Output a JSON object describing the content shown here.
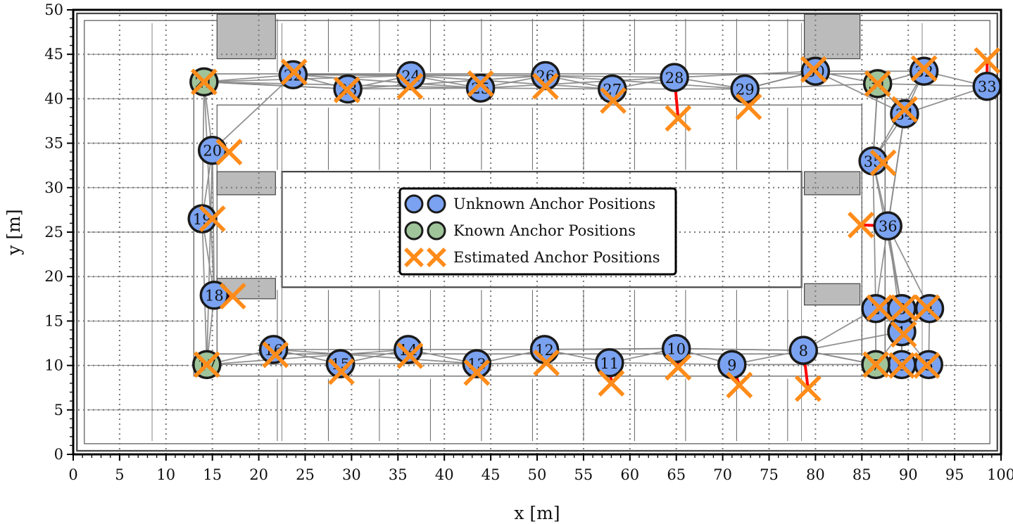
{
  "chart_data": {
    "type": "scatter",
    "xlabel": "x [m]",
    "ylabel": "y [m]",
    "xlim": [
      0,
      100
    ],
    "ylim": [
      0,
      50
    ],
    "xticks": [
      0,
      5,
      10,
      15,
      20,
      25,
      30,
      35,
      40,
      45,
      50,
      55,
      60,
      65,
      70,
      75,
      80,
      85,
      90,
      95,
      100
    ],
    "yticks": [
      0,
      5,
      10,
      15,
      20,
      25,
      30,
      35,
      40,
      45,
      50
    ],
    "grid": true,
    "background": "building floor plan",
    "legend": {
      "placement": "center",
      "entries": [
        {
          "label": "Unknown Anchor Positions",
          "marker": "circle",
          "color": "#7aa2f0"
        },
        {
          "label": "Known Anchor Positions",
          "marker": "circle",
          "color": "#9fc49a"
        },
        {
          "label": "Estimated Anchor Positions",
          "marker": "x",
          "color": "#ff8c1a"
        }
      ]
    },
    "colors": {
      "unknown": "#7aa2f0",
      "known": "#9fc49a",
      "estimate": "#ff8c1a",
      "error_line": "#ff0000",
      "links": "#888888"
    },
    "anchors": [
      {
        "id": "1",
        "x": 89.3,
        "y": 13.8,
        "ex": 89.5,
        "ey": 13.5,
        "known": false
      },
      {
        "id": "2",
        "x": 86.5,
        "y": 16.4,
        "ex": 86.9,
        "ey": 16.5,
        "known": false
      },
      {
        "id": "3",
        "x": 89.3,
        "y": 16.4,
        "ex": 89.5,
        "ey": 16.5,
        "known": false
      },
      {
        "id": "4",
        "x": 92.3,
        "y": 16.4,
        "ex": 92.0,
        "ey": 16.5,
        "known": false
      },
      {
        "id": "5",
        "x": 92.2,
        "y": 10.1,
        "ex": 92.0,
        "ey": 10.0,
        "known": false
      },
      {
        "id": "6",
        "x": 89.3,
        "y": 10.1,
        "ex": 89.3,
        "ey": 10.0,
        "known": false
      },
      {
        "id": "7",
        "x": 86.5,
        "y": 10.1,
        "ex": 86.5,
        "ey": 10.1,
        "known": true
      },
      {
        "id": "8",
        "x": 78.7,
        "y": 11.7,
        "ex": 79.2,
        "ey": 7.4,
        "known": false
      },
      {
        "id": "9",
        "x": 71.0,
        "y": 10.1,
        "ex": 71.8,
        "ey": 7.8,
        "known": false
      },
      {
        "id": "10",
        "x": 65.0,
        "y": 11.9,
        "ex": 65.2,
        "ey": 9.8,
        "known": false
      },
      {
        "id": "11",
        "x": 57.8,
        "y": 10.3,
        "ex": 58.0,
        "ey": 8.0,
        "known": false
      },
      {
        "id": "12",
        "x": 50.8,
        "y": 11.8,
        "ex": 51.0,
        "ey": 10.3,
        "known": false
      },
      {
        "id": "13",
        "x": 43.5,
        "y": 10.2,
        "ex": 43.5,
        "ey": 9.2,
        "known": false
      },
      {
        "id": "14",
        "x": 36.1,
        "y": 11.8,
        "ex": 36.3,
        "ey": 11.1,
        "known": false
      },
      {
        "id": "15",
        "x": 28.8,
        "y": 10.2,
        "ex": 28.9,
        "ey": 9.3,
        "known": false
      },
      {
        "id": "16",
        "x": 21.6,
        "y": 11.8,
        "ex": 21.8,
        "ey": 11.2,
        "known": false
      },
      {
        "id": "17",
        "x": 14.4,
        "y": 10.1,
        "ex": 14.4,
        "ey": 10.1,
        "known": true
      },
      {
        "id": "18",
        "x": 15.2,
        "y": 17.9,
        "ex": 17.2,
        "ey": 17.8,
        "known": false
      },
      {
        "id": "19",
        "x": 13.9,
        "y": 26.5,
        "ex": 15.0,
        "ey": 26.5,
        "known": false
      },
      {
        "id": "20",
        "x": 15.0,
        "y": 34.2,
        "ex": 16.8,
        "ey": 34.0,
        "known": false
      },
      {
        "id": "21",
        "x": 14.1,
        "y": 41.9,
        "ex": 14.1,
        "ey": 41.9,
        "known": true
      },
      {
        "id": "22",
        "x": 23.7,
        "y": 42.7,
        "ex": 23.8,
        "ey": 43.0,
        "known": false
      },
      {
        "id": "23",
        "x": 29.6,
        "y": 41.1,
        "ex": 29.5,
        "ey": 41.0,
        "known": false
      },
      {
        "id": "24",
        "x": 36.4,
        "y": 42.6,
        "ex": 36.3,
        "ey": 41.4,
        "known": false
      },
      {
        "id": "25",
        "x": 43.9,
        "y": 41.2,
        "ex": 43.9,
        "ey": 41.7,
        "known": false
      },
      {
        "id": "26",
        "x": 50.9,
        "y": 42.6,
        "ex": 50.9,
        "ey": 41.4,
        "known": false
      },
      {
        "id": "27",
        "x": 58.1,
        "y": 41.1,
        "ex": 58.2,
        "ey": 39.8,
        "known": false
      },
      {
        "id": "28",
        "x": 64.8,
        "y": 42.4,
        "ex": 65.2,
        "ey": 37.8,
        "known": false
      },
      {
        "id": "29",
        "x": 72.4,
        "y": 41.1,
        "ex": 72.8,
        "ey": 39.1,
        "known": false
      },
      {
        "id": "30",
        "x": 80.0,
        "y": 43.1,
        "ex": 79.8,
        "ey": 43.3,
        "known": false
      },
      {
        "id": "31",
        "x": 86.7,
        "y": 41.7,
        "ex": 86.7,
        "ey": 41.7,
        "known": true
      },
      {
        "id": "32",
        "x": 91.7,
        "y": 43.1,
        "ex": 91.7,
        "ey": 43.4,
        "known": false
      },
      {
        "id": "33",
        "x": 98.5,
        "y": 41.4,
        "ex": 98.5,
        "ey": 44.3,
        "known": false
      },
      {
        "id": "34",
        "x": 89.6,
        "y": 38.3,
        "ex": 89.6,
        "ey": 38.8,
        "known": false
      },
      {
        "id": "35",
        "x": 86.2,
        "y": 33.0,
        "ex": 87.3,
        "ey": 32.8,
        "known": false
      },
      {
        "id": "36",
        "x": 87.8,
        "y": 25.7,
        "ex": 84.9,
        "ey": 25.8,
        "known": false
      }
    ],
    "links": [
      [
        21,
        22
      ],
      [
        21,
        23
      ],
      [
        21,
        24
      ],
      [
        21,
        25
      ],
      [
        22,
        23
      ],
      [
        22,
        24
      ],
      [
        22,
        25
      ],
      [
        22,
        26
      ],
      [
        23,
        24
      ],
      [
        23,
        25
      ],
      [
        23,
        26
      ],
      [
        24,
        25
      ],
      [
        24,
        26
      ],
      [
        24,
        27
      ],
      [
        25,
        26
      ],
      [
        25,
        27
      ],
      [
        25,
        28
      ],
      [
        26,
        27
      ],
      [
        26,
        28
      ],
      [
        26,
        29
      ],
      [
        27,
        28
      ],
      [
        27,
        29
      ],
      [
        28,
        29
      ],
      [
        28,
        30
      ],
      [
        29,
        30
      ],
      [
        29,
        31
      ],
      [
        30,
        31
      ],
      [
        30,
        32
      ],
      [
        30,
        34
      ],
      [
        31,
        32
      ],
      [
        31,
        33
      ],
      [
        31,
        34
      ],
      [
        31,
        35
      ],
      [
        32,
        33
      ],
      [
        32,
        34
      ],
      [
        32,
        35
      ],
      [
        33,
        34
      ],
      [
        34,
        35
      ],
      [
        34,
        36
      ],
      [
        35,
        36
      ],
      [
        35,
        2
      ],
      [
        35,
        3
      ],
      [
        36,
        2
      ],
      [
        36,
        3
      ],
      [
        36,
        4
      ],
      [
        36,
        1
      ],
      [
        35,
        31
      ],
      [
        36,
        34
      ],
      [
        2,
        3
      ],
      [
        3,
        4
      ],
      [
        2,
        1
      ],
      [
        3,
        1
      ],
      [
        4,
        1
      ],
      [
        1,
        5
      ],
      [
        1,
        6
      ],
      [
        1,
        7
      ],
      [
        2,
        7
      ],
      [
        3,
        6
      ],
      [
        4,
        5
      ],
      [
        5,
        6
      ],
      [
        6,
        7
      ],
      [
        7,
        8
      ],
      [
        8,
        2
      ],
      [
        8,
        1
      ],
      [
        8,
        9
      ],
      [
        8,
        10
      ],
      [
        9,
        10
      ],
      [
        9,
        11
      ],
      [
        10,
        11
      ],
      [
        10,
        12
      ],
      [
        11,
        12
      ],
      [
        11,
        13
      ],
      [
        12,
        13
      ],
      [
        12,
        14
      ],
      [
        13,
        14
      ],
      [
        13,
        15
      ],
      [
        14,
        15
      ],
      [
        14,
        16
      ],
      [
        15,
        16
      ],
      [
        15,
        17
      ],
      [
        16,
        17
      ],
      [
        14,
        17
      ],
      [
        16,
        13
      ],
      [
        17,
        18
      ],
      [
        17,
        19
      ],
      [
        18,
        19
      ],
      [
        18,
        20
      ],
      [
        19,
        20
      ],
      [
        19,
        21
      ],
      [
        20,
        21
      ],
      [
        18,
        21
      ],
      [
        17,
        20
      ],
      [
        20,
        22
      ],
      [
        12,
        10
      ],
      [
        9,
        7
      ],
      [
        10,
        8
      ],
      [
        8,
        7
      ],
      [
        23,
        21
      ],
      [
        30,
        29
      ]
    ]
  }
}
